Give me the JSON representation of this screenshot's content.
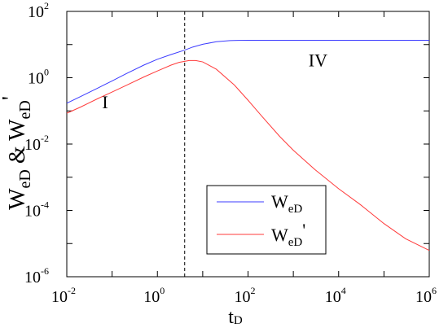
{
  "chart_data": {
    "type": "line",
    "x_scale": "log",
    "y_scale": "log",
    "xlim": [
      0.01,
      1000000
    ],
    "ylim": [
      1e-06,
      100
    ],
    "x_ticks": [
      0.01,
      1,
      100,
      10000,
      1000000
    ],
    "y_ticks": [
      1e-06,
      0.0001,
      0.01,
      1,
      100
    ],
    "x_tick_labels": [
      {
        "base": "10",
        "exp": "-2"
      },
      {
        "base": "10",
        "exp": "0"
      },
      {
        "base": "10",
        "exp": "2"
      },
      {
        "base": "10",
        "exp": "4"
      },
      {
        "base": "10",
        "exp": "6"
      }
    ],
    "y_tick_labels": [
      {
        "base": "10",
        "exp": "-6"
      },
      {
        "base": "10",
        "exp": "-4"
      },
      {
        "base": "10",
        "exp": "-2"
      },
      {
        "base": "10",
        "exp": "0"
      },
      {
        "base": "10",
        "exp": "2"
      }
    ],
    "xlabel": {
      "main": "t",
      "sub": "D"
    },
    "ylabel": {
      "p1": "W",
      "s1": "eD",
      "mid": " & W",
      "s2": "eD",
      "tail": "'"
    },
    "vline_x": 4,
    "regions": [
      {
        "label": "I",
        "x": 0.07,
        "y": 0.12
      },
      {
        "label": "IV",
        "x": 3500,
        "y": 2.2
      }
    ],
    "legend": {
      "position": "bottom-center"
    },
    "series": [
      {
        "name": "W",
        "name_sub": "eD",
        "name_tail": "",
        "color": "#3b3bff",
        "x": [
          0.01,
          0.02,
          0.05,
          0.1,
          0.2,
          0.5,
          1,
          2,
          4,
          6,
          10,
          20,
          40,
          60,
          100,
          300,
          1000,
          10000,
          100000,
          1000000
        ],
        "y": [
          0.17,
          0.27,
          0.5,
          0.8,
          1.3,
          2.4,
          3.6,
          5.0,
          6.8,
          8.4,
          10.2,
          12.2,
          13.2,
          13.4,
          13.5,
          13.5,
          13.5,
          13.5,
          13.5,
          13.5
        ]
      },
      {
        "name": "W",
        "name_sub": "eD",
        "name_tail": "'",
        "color": "#ff3b3b",
        "x": [
          0.01,
          0.02,
          0.05,
          0.1,
          0.2,
          0.5,
          1,
          2,
          3,
          5,
          7,
          10,
          20,
          50,
          100,
          200,
          500,
          1000,
          3000,
          10000,
          30000,
          100000,
          300000,
          1000000
        ],
        "y": [
          0.085,
          0.13,
          0.24,
          0.37,
          0.58,
          1.05,
          1.6,
          2.4,
          2.9,
          3.3,
          3.3,
          3.0,
          1.8,
          0.6,
          0.21,
          0.07,
          0.017,
          0.0065,
          0.0017,
          0.00045,
          0.00015,
          4e-05,
          1.4e-05,
          6.2e-06
        ]
      }
    ]
  }
}
